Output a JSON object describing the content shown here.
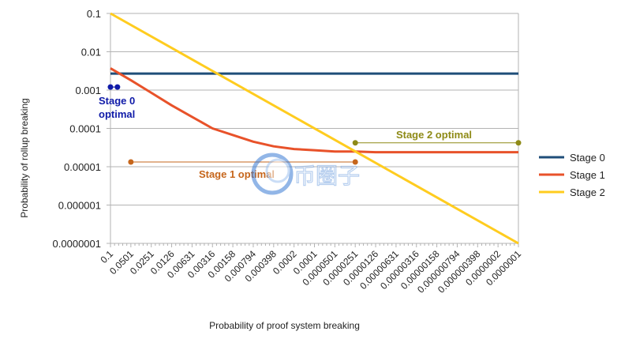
{
  "chart_data": {
    "type": "line",
    "xlabel": "Probability of proof system breaking",
    "ylabel": "Probability of rollup breaking",
    "x_scale": "log-reversed",
    "y_scale": "log",
    "xlim": [
      0.1,
      1e-07
    ],
    "ylim": [
      1e-07,
      0.1
    ],
    "grid": true,
    "legend_position": "right",
    "y_ticks": [
      "0.1",
      "0.01",
      "0.001",
      "0.0001",
      "0.00001",
      "0.000001",
      "0.0000001"
    ],
    "x_ticks": [
      "0.1",
      "0.0501",
      "0.0251",
      "0.0126",
      "0.00631",
      "0.00316",
      "0.00158",
      "0.000794",
      "0.000398",
      "0.0002",
      "0.0001",
      "0.0000501",
      "0.0000251",
      "0.0000126",
      "0.00000631",
      "0.00000316",
      "0.00000158",
      "0.000000794",
      "0.000000398",
      "0.0000002",
      "0.0000001"
    ],
    "series": [
      {
        "name": "Stage 0",
        "color": "#1f4e79",
        "x": [
          0.1,
          1e-07
        ],
        "y": [
          0.0027,
          0.0027
        ]
      },
      {
        "name": "Stage 1",
        "color": "#e8522a",
        "x": [
          0.1,
          0.0501,
          0.0251,
          0.0126,
          0.00631,
          0.00316,
          0.00158,
          0.000794,
          0.000398,
          0.0002,
          0.0001,
          5.01e-05,
          2.51e-05,
          1.26e-05,
          6.31e-06,
          3.16e-06,
          1.58e-06,
          7.94e-07,
          3.98e-07,
          2e-07,
          1e-07
        ],
        "y": [
          0.0037,
          0.0018,
          0.00085,
          0.0004,
          0.0002,
          0.0001,
          6.7e-05,
          4.5e-05,
          3.4e-05,
          2.9e-05,
          2.7e-05,
          2.5e-05,
          2.5e-05,
          2.4e-05,
          2.4e-05,
          2.4e-05,
          2.4e-05,
          2.4e-05,
          2.4e-05,
          2.4e-05,
          2.4e-05
        ]
      },
      {
        "name": "Stage 2",
        "color": "#ffcc1f",
        "x": [
          0.1,
          1e-07
        ],
        "y": [
          0.1,
          1e-07
        ]
      }
    ],
    "annotations": [
      {
        "text": [
          "Stage 0",
          "optimal"
        ],
        "color": "#0f1aa8",
        "x_start": 0.1,
        "x_end": 0.079,
        "y": 0.0012
      },
      {
        "text": [
          "Stage 1 optimal"
        ],
        "color": "#c6661c",
        "x_start": 0.0501,
        "x_end": 2.51e-05,
        "y": 1.33e-05
      },
      {
        "text": [
          "Stage 2 optimal"
        ],
        "color": "#8e8a16",
        "x_start": 2.51e-05,
        "x_end": 1e-07,
        "y": 4.2e-05
      }
    ]
  },
  "watermark": {
    "text": "币圈子"
  }
}
